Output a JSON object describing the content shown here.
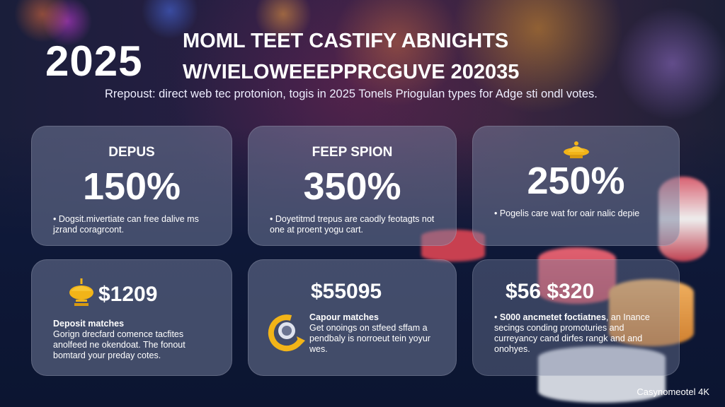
{
  "header": {
    "year": "2025",
    "title_line1": "MOML TEET CASTIFY ABNIGHTS",
    "title_line2": "W/VIELOWEEEPPRCGUVE 202035",
    "subtitle": "Rrepoust: direct web tec protonion, togis in 2025 Tonels Priogulan types for Adge sti ondl votes."
  },
  "cards": [
    {
      "label": "DEPUS",
      "value": "150%",
      "text": "• Dogsit.mivertiate can free dalive ms jzrand coragrcont.",
      "icon": ""
    },
    {
      "label": "FEEP SPION",
      "value": "350%",
      "text": "• Doyetitmd trepus are caodly feotagts not one at proent yogu cart.",
      "icon": ""
    },
    {
      "label": "",
      "value": "250%",
      "text": "• Pogelis care wat for oair nalic depie",
      "icon": "crown-icon"
    },
    {
      "value": "$1209",
      "heading": "Deposit matches",
      "text": "Gorign drecfard comence tacfites anolfeed ne okendoat. The fonout bomtard your preday cotes.",
      "icon": "trophy-icon"
    },
    {
      "value": "$55095",
      "heading": "Capour matches",
      "text": "Get onoings on stfeed sffam a pendbaly is norroeut tein yoyur wes.",
      "icon": "coin-arrow-icon"
    },
    {
      "value": "$56 $320",
      "heading": "S000 ancmetet foctiatnes",
      "text": ", an Inance secings conding promoturies and curreyancy cand dirfes rangk and and onohyes.",
      "icon": ""
    }
  ],
  "footer": "Casynomeotel 4K",
  "colors": {
    "accent": "#f2b418",
    "background": "#0e1838"
  }
}
